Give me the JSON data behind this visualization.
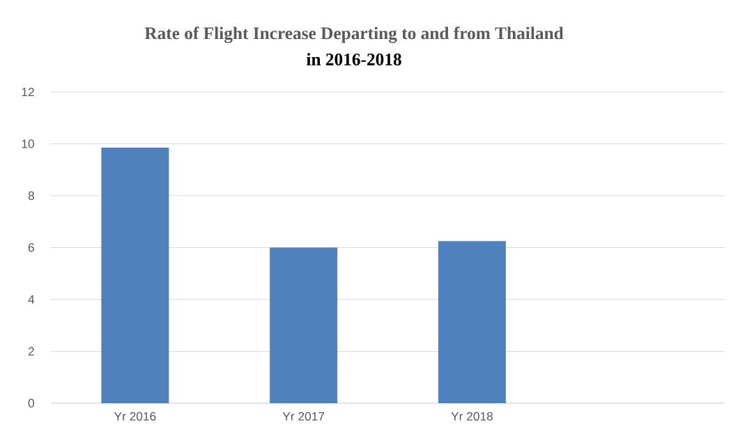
{
  "chart_data": {
    "type": "bar",
    "title": "Rate of Flight Increase Departing to and from Thailand",
    "subtitle": "in 2016-2018",
    "categories": [
      "Yr 2016",
      "Yr 2017",
      "Yr 2018",
      null
    ],
    "values": [
      9.85,
      6.0,
      6.25,
      null
    ],
    "color": "#4f81bd",
    "ylim": [
      0,
      12
    ],
    "yticks": [
      0,
      2,
      4,
      6,
      8,
      10,
      12
    ],
    "grid": "y"
  }
}
